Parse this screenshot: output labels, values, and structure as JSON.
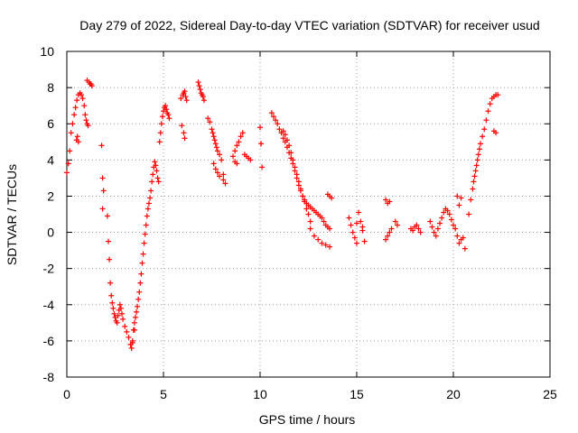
{
  "chart_data": {
    "type": "scatter",
    "title": "Day 279 of 2022, Sidereal Day-to-day VTEC variation (SDTVAR) for receiver usud",
    "xlabel": "GPS time / hours",
    "ylabel": "SDTVAR / TECUs",
    "xlim": [
      0,
      25
    ],
    "ylim": [
      -8,
      10
    ],
    "xticks": [
      0,
      5,
      10,
      15,
      20,
      25
    ],
    "yticks": [
      -8,
      -6,
      -4,
      -2,
      0,
      2,
      4,
      6,
      8,
      10
    ],
    "grid": true,
    "marker": "+",
    "color": "#ff0000",
    "series": [
      {
        "name": "SDTVAR",
        "x": [
          0.0,
          0.08,
          0.15,
          0.22,
          0.3,
          0.38,
          0.45,
          0.52,
          0.6,
          0.68,
          0.75,
          0.82,
          0.9,
          0.95,
          1.0,
          1.05,
          1.1,
          1.15,
          1.2,
          1.25,
          1.3,
          1.05,
          0.5,
          0.55,
          0.6,
          1.8,
          1.85,
          1.9,
          1.85,
          2.1,
          2.15,
          2.2,
          2.25,
          2.3,
          2.35,
          2.4,
          2.45,
          2.5,
          2.55,
          2.6,
          2.65,
          2.7,
          2.75,
          2.8,
          2.85,
          2.9,
          3.0,
          3.1,
          3.2,
          3.3,
          3.35,
          3.4,
          3.45,
          3.5,
          3.55,
          3.6,
          3.65,
          3.7,
          3.75,
          3.8,
          3.85,
          3.9,
          3.95,
          4.0,
          4.05,
          4.1,
          4.15,
          4.2,
          4.25,
          4.3,
          4.35,
          4.4,
          4.45,
          4.5,
          4.55,
          4.6,
          4.65,
          4.7,
          4.75,
          3.3,
          3.4,
          3.5,
          4.8,
          4.85,
          4.9,
          4.95,
          5.0,
          5.05,
          5.1,
          5.15,
          5.2,
          5.25,
          5.3,
          5.9,
          6.0,
          6.05,
          6.1,
          6.15,
          6.2,
          5.95,
          6.05,
          6.1,
          6.8,
          6.85,
          6.9,
          6.95,
          7.0,
          7.05,
          7.1,
          7.3,
          7.4,
          7.5,
          7.55,
          7.6,
          7.65,
          7.7,
          7.75,
          7.8,
          7.9,
          8.0,
          8.1,
          7.6,
          7.7,
          7.8,
          7.9,
          8.1,
          8.2,
          8.6,
          8.7,
          8.8,
          8.9,
          9.0,
          9.1,
          9.2,
          9.3,
          9.4,
          9.5,
          8.7,
          8.8,
          10.0,
          10.05,
          10.1,
          10.6,
          10.7,
          10.8,
          10.9,
          11.0,
          11.1,
          11.2,
          11.3,
          11.4,
          11.5,
          11.6,
          11.7,
          11.8,
          11.9,
          12.0,
          12.1,
          12.2,
          12.3,
          12.4,
          12.5,
          12.6,
          12.7,
          12.8,
          12.9,
          13.0,
          13.1,
          13.2,
          13.3,
          13.4,
          13.5,
          13.6,
          11.2,
          11.3,
          11.4,
          11.5,
          11.6,
          11.7,
          11.8,
          11.9,
          12.0,
          12.1,
          12.2,
          12.3,
          12.4,
          12.5,
          12.6,
          12.6,
          12.8,
          13.0,
          13.2,
          13.4,
          13.6,
          13.5,
          13.6,
          13.7,
          14.6,
          14.7,
          14.8,
          14.9,
          15.0,
          15.1,
          15.2,
          15.3,
          15.4,
          15.0,
          15.3,
          16.5,
          16.6,
          16.7,
          16.5,
          16.6,
          16.7,
          16.8,
          17.0,
          17.1,
          17.8,
          17.9,
          18.0,
          18.1,
          18.2,
          18.3,
          18.8,
          18.9,
          19.0,
          19.1,
          19.2,
          19.3,
          19.4,
          19.5,
          19.6,
          19.7,
          19.8,
          19.9,
          20.0,
          20.1,
          20.2,
          20.3,
          20.4,
          20.5,
          20.6,
          20.2,
          20.3,
          20.4,
          20.8,
          20.9,
          21.0,
          21.05,
          21.1,
          21.15,
          21.2,
          21.25,
          21.3,
          21.35,
          21.4,
          21.5,
          21.6,
          21.7,
          21.8,
          21.9,
          22.0,
          22.1,
          22.2,
          22.3,
          22.1,
          22.2
        ],
        "y": [
          3.3,
          3.8,
          4.5,
          5.5,
          6.0,
          6.5,
          6.9,
          7.3,
          7.6,
          7.7,
          7.6,
          7.4,
          7.0,
          6.5,
          6.2,
          6.0,
          5.9,
          8.3,
          8.2,
          8.2,
          8.1,
          8.4,
          5.1,
          5.3,
          5.0,
          4.8,
          3.0,
          2.3,
          1.3,
          0.9,
          -0.5,
          -1.5,
          -2.8,
          -3.5,
          -3.9,
          -4.2,
          -4.5,
          -4.7,
          -4.9,
          -5.0,
          -4.6,
          -4.3,
          -4.0,
          -4.2,
          -4.5,
          -4.8,
          -5.2,
          -5.5,
          -5.8,
          -6.2,
          -6.4,
          -6.0,
          -5.4,
          -5.0,
          -4.7,
          -4.4,
          -4.1,
          -3.7,
          -3.3,
          -2.8,
          -2.3,
          -1.7,
          -1.2,
          -0.6,
          -0.1,
          0.4,
          0.9,
          1.3,
          1.6,
          1.9,
          2.3,
          2.8,
          3.2,
          3.6,
          3.9,
          3.7,
          3.4,
          3.0,
          2.8,
          -6.2,
          -6.1,
          -5.4,
          5.0,
          5.5,
          6.0,
          6.4,
          6.7,
          6.9,
          7.0,
          6.8,
          6.6,
          6.5,
          6.3,
          7.4,
          7.6,
          7.7,
          7.8,
          7.5,
          7.3,
          5.9,
          5.5,
          5.2,
          8.3,
          8.1,
          7.9,
          7.7,
          7.6,
          7.5,
          7.3,
          6.3,
          6.1,
          5.7,
          5.5,
          5.3,
          5.1,
          4.9,
          4.7,
          4.5,
          4.3,
          4.0,
          3.2,
          3.8,
          3.5,
          3.3,
          3.1,
          2.9,
          2.7,
          4.2,
          4.5,
          4.8,
          5.0,
          5.3,
          5.5,
          4.3,
          4.2,
          4.1,
          4.0,
          3.9,
          3.8,
          5.8,
          4.9,
          3.6,
          6.6,
          6.4,
          6.2,
          6.0,
          5.7,
          5.5,
          5.2,
          5.0,
          4.7,
          4.4,
          4.1,
          3.8,
          3.4,
          3.0,
          2.6,
          2.3,
          2.0,
          1.8,
          1.6,
          1.5,
          1.4,
          1.3,
          1.2,
          1.1,
          1.0,
          0.9,
          0.8,
          0.6,
          0.4,
          0.3,
          0.2,
          5.6,
          5.4,
          5.1,
          4.8,
          4.4,
          4.0,
          3.6,
          3.2,
          2.8,
          2.4,
          2.0,
          1.7,
          1.3,
          1.0,
          0.6,
          0.2,
          -0.2,
          -0.4,
          -0.6,
          -0.7,
          -0.8,
          2.1,
          2.0,
          1.9,
          0.8,
          0.4,
          0.0,
          -0.3,
          0.5,
          1.1,
          0.6,
          0.1,
          -0.5,
          -0.6,
          0.3,
          1.8,
          1.6,
          1.7,
          -0.4,
          -0.2,
          0.0,
          0.2,
          0.6,
          0.4,
          0.2,
          0.1,
          0.3,
          0.4,
          0.2,
          0.0,
          0.6,
          0.3,
          0.0,
          -0.2,
          0.2,
          0.5,
          0.8,
          1.1,
          1.3,
          1.2,
          1.0,
          0.7,
          0.4,
          0.2,
          -0.2,
          -0.6,
          -0.4,
          -0.3,
          -0.9,
          2.0,
          1.5,
          1.9,
          1.0,
          1.8,
          2.4,
          2.8,
          3.1,
          3.4,
          3.7,
          4.0,
          4.3,
          4.6,
          4.9,
          5.3,
          5.7,
          6.2,
          6.7,
          7.1,
          7.4,
          7.5,
          7.6,
          7.6,
          5.6,
          5.5
        ]
      }
    ]
  }
}
